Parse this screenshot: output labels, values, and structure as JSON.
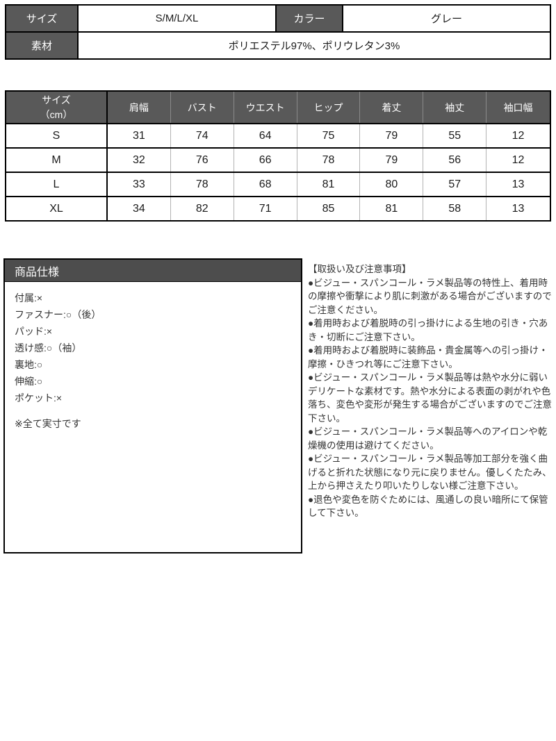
{
  "colors": {
    "table_header_bg": "#595959",
    "spec_header_bg": "#4d4d4d",
    "border": "#000000",
    "grid_line": "#b3b3b3",
    "header_text": "#ffffff",
    "body_text": "#333333"
  },
  "info_table": {
    "size_label": "サイズ",
    "size_value": "S/M/L/XL",
    "color_label": "カラー",
    "color_value": "グレー",
    "material_label": "素材",
    "material_value": "ポリエステル97%、ポリウレタン3%"
  },
  "size_table": {
    "header": [
      "サイズ\n（cm）",
      "肩幅",
      "バスト",
      "ウエスト",
      "ヒップ",
      "着丈",
      "袖丈",
      "袖口幅"
    ],
    "rows": [
      [
        "S",
        "31",
        "74",
        "64",
        "75",
        "79",
        "55",
        "12"
      ],
      [
        "M",
        "32",
        "76",
        "66",
        "78",
        "79",
        "56",
        "12"
      ],
      [
        "L",
        "33",
        "78",
        "68",
        "81",
        "80",
        "57",
        "13"
      ],
      [
        "XL",
        "34",
        "82",
        "71",
        "85",
        "81",
        "58",
        "13"
      ]
    ]
  },
  "spec": {
    "title": "商品仕様",
    "items": [
      "付属:×",
      "ファスナー:○（後）",
      "パッド:×",
      "透け感:○（袖）",
      "裏地:○",
      "伸縮:○",
      "ポケット:×"
    ],
    "note": "※全て実寸です"
  },
  "precautions": {
    "title": "【取扱い及び注意事項】",
    "items": [
      "●ビジュー・スパンコール・ラメ製品等の特性上、着用時の摩擦や衝撃により肌に刺激がある場合がございますのでご注意ください。",
      "●着用時および着脱時の引っ掛けによる生地の引き・穴あき・切断にご注意下さい。",
      "●着用時および着脱時に装飾品・貴金属等への引っ掛け・摩擦・ひきつれ等にご注意下さい。",
      "●ビジュー・スパンコール・ラメ製品等は熱や水分に弱いデリケートな素材です。熱や水分による表面の剥がれや色落ち、変色や変形が発生する場合がございますのでご注意下さい。",
      "●ビジュー・スパンコール・ラメ製品等へのアイロンや乾燥機の使用は避けてください。",
      "●ビジュー・スパンコール・ラメ製品等加工部分を強く曲げると折れた状態になり元に戻りません。優しくたたみ、上から押さえたり叩いたりしない様ご注意下さい。",
      "●退色や変色を防ぐためには、風通しの良い暗所にて保管して下さい。"
    ]
  }
}
